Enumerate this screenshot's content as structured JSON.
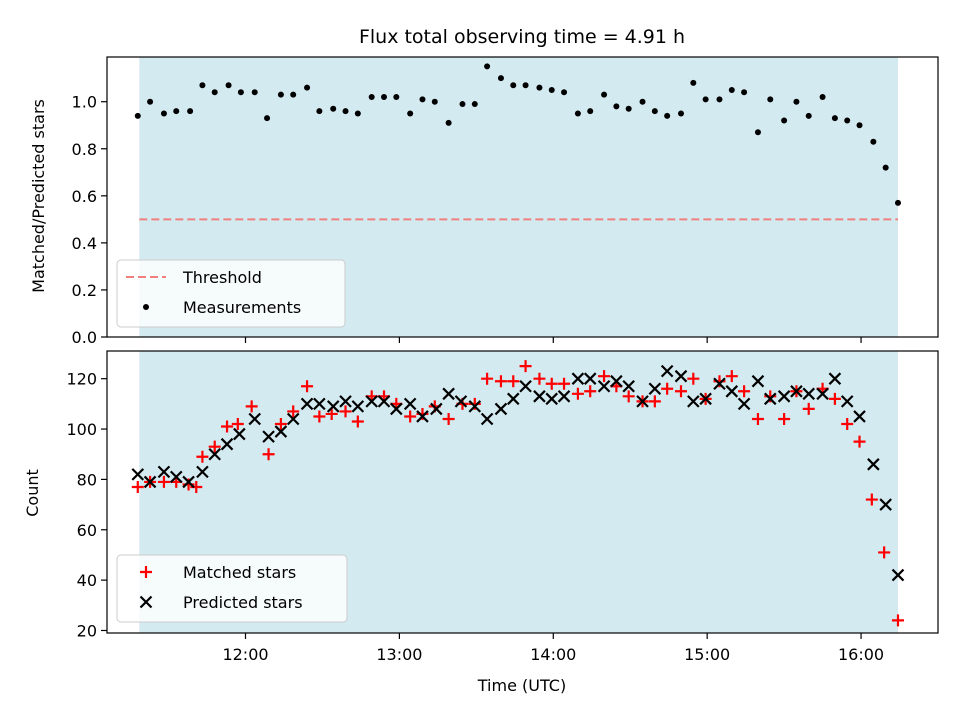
{
  "colors": {
    "shade": "#d3eaf0",
    "threshold": "#f08080",
    "matched": "#ff0000",
    "predicted": "#000000",
    "measurements": "#000000"
  },
  "chart_data": [
    {
      "type": "scatter",
      "title": "Flux total observing time = 4.91 h",
      "xlabel": "",
      "ylabel": "Matched/Predicted stars",
      "x_axis": "time (UTC, hours)",
      "xlim": [
        11.1,
        16.5
      ],
      "ylim": [
        0.0,
        1.19
      ],
      "yticks": [
        0.0,
        0.2,
        0.4,
        0.6,
        0.8,
        1.0
      ],
      "ytick_labels": [
        "0.0",
        "0.2",
        "0.4",
        "0.6",
        "0.8",
        "1.0"
      ],
      "xticks": [
        12,
        13,
        14,
        15,
        16
      ],
      "shaded_span": [
        11.31,
        16.24
      ],
      "legend_position": "lower-left",
      "threshold": {
        "name": "Threshold",
        "value": 0.5,
        "style": "dashed"
      },
      "series": [
        {
          "name": "Measurements",
          "marker": "dot",
          "points": [
            [
              11.3,
              0.94
            ],
            [
              11.38,
              1.0
            ],
            [
              11.47,
              0.95
            ],
            [
              11.55,
              0.96
            ],
            [
              11.64,
              0.96
            ],
            [
              11.72,
              1.07
            ],
            [
              11.8,
              1.04
            ],
            [
              11.89,
              1.07
            ],
            [
              11.97,
              1.04
            ],
            [
              12.06,
              1.04
            ],
            [
              12.14,
              0.93
            ],
            [
              12.23,
              1.03
            ],
            [
              12.31,
              1.03
            ],
            [
              12.4,
              1.06
            ],
            [
              12.48,
              0.96
            ],
            [
              12.57,
              0.97
            ],
            [
              12.65,
              0.96
            ],
            [
              12.73,
              0.95
            ],
            [
              12.82,
              1.02
            ],
            [
              12.9,
              1.02
            ],
            [
              12.98,
              1.02
            ],
            [
              13.07,
              0.95
            ],
            [
              13.15,
              1.01
            ],
            [
              13.23,
              1.0
            ],
            [
              13.32,
              0.91
            ],
            [
              13.41,
              0.99
            ],
            [
              13.49,
              0.99
            ],
            [
              13.57,
              1.15
            ],
            [
              13.66,
              1.1
            ],
            [
              13.74,
              1.07
            ],
            [
              13.82,
              1.07
            ],
            [
              13.91,
              1.06
            ],
            [
              13.99,
              1.05
            ],
            [
              14.07,
              1.04
            ],
            [
              14.16,
              0.95
            ],
            [
              14.24,
              0.96
            ],
            [
              14.33,
              1.03
            ],
            [
              14.41,
              0.98
            ],
            [
              14.49,
              0.97
            ],
            [
              14.58,
              1.0
            ],
            [
              14.66,
              0.96
            ],
            [
              14.74,
              0.94
            ],
            [
              14.83,
              0.95
            ],
            [
              14.91,
              1.08
            ],
            [
              14.99,
              1.01
            ],
            [
              15.08,
              1.01
            ],
            [
              15.16,
              1.05
            ],
            [
              15.24,
              1.04
            ],
            [
              15.33,
              0.87
            ],
            [
              15.41,
              1.01
            ],
            [
              15.5,
              0.92
            ],
            [
              15.58,
              1.0
            ],
            [
              15.66,
              0.94
            ],
            [
              15.75,
              1.02
            ],
            [
              15.83,
              0.93
            ],
            [
              15.91,
              0.92
            ],
            [
              15.99,
              0.9
            ],
            [
              16.08,
              0.83
            ],
            [
              16.16,
              0.72
            ],
            [
              16.24,
              0.57
            ]
          ]
        }
      ]
    },
    {
      "type": "scatter",
      "title": "",
      "xlabel": "Time (UTC)",
      "ylabel": "Count",
      "x_axis": "time (UTC, hours)",
      "xlim": [
        11.1,
        16.5
      ],
      "ylim": [
        19,
        131
      ],
      "yticks": [
        20,
        40,
        60,
        80,
        100,
        120
      ],
      "ytick_labels": [
        "20",
        "40",
        "60",
        "80",
        "100",
        "120"
      ],
      "xticks": [
        12,
        13,
        14,
        15,
        16
      ],
      "xtick_labels": [
        "12:00",
        "13:00",
        "14:00",
        "15:00",
        "16:00"
      ],
      "shaded_span": [
        11.31,
        16.24
      ],
      "legend_position": "lower-left",
      "series": [
        {
          "name": "Matched stars",
          "marker": "plus",
          "points": [
            [
              11.3,
              77
            ],
            [
              11.38,
              79
            ],
            [
              11.47,
              79
            ],
            [
              11.55,
              79
            ],
            [
              11.63,
              78
            ],
            [
              11.68,
              77
            ],
            [
              11.72,
              89
            ],
            [
              11.8,
              93
            ],
            [
              11.88,
              101
            ],
            [
              11.95,
              102
            ],
            [
              12.04,
              109
            ],
            [
              12.15,
              90
            ],
            [
              12.23,
              102
            ],
            [
              12.31,
              107
            ],
            [
              12.4,
              117
            ],
            [
              12.48,
              105
            ],
            [
              12.56,
              106
            ],
            [
              12.65,
              107
            ],
            [
              12.73,
              103
            ],
            [
              12.82,
              113
            ],
            [
              12.9,
              113
            ],
            [
              12.98,
              110
            ],
            [
              13.07,
              105
            ],
            [
              13.15,
              106
            ],
            [
              13.23,
              109
            ],
            [
              13.32,
              104
            ],
            [
              13.41,
              110
            ],
            [
              13.49,
              110
            ],
            [
              13.57,
              120
            ],
            [
              13.66,
              119
            ],
            [
              13.74,
              119
            ],
            [
              13.82,
              125
            ],
            [
              13.91,
              120
            ],
            [
              13.99,
              118
            ],
            [
              14.07,
              118
            ],
            [
              14.16,
              114
            ],
            [
              14.24,
              115
            ],
            [
              14.33,
              121
            ],
            [
              14.41,
              117
            ],
            [
              14.49,
              113
            ],
            [
              14.58,
              111
            ],
            [
              14.66,
              111
            ],
            [
              14.74,
              116
            ],
            [
              14.83,
              115
            ],
            [
              14.91,
              120
            ],
            [
              14.99,
              112
            ],
            [
              15.08,
              119
            ],
            [
              15.16,
              121
            ],
            [
              15.24,
              115
            ],
            [
              15.33,
              104
            ],
            [
              15.41,
              113
            ],
            [
              15.5,
              104
            ],
            [
              15.58,
              115
            ],
            [
              15.66,
              108
            ],
            [
              15.75,
              116
            ],
            [
              15.83,
              112
            ],
            [
              15.91,
              102
            ],
            [
              15.99,
              95
            ],
            [
              16.07,
              72
            ],
            [
              16.15,
              51
            ],
            [
              16.24,
              24
            ]
          ]
        },
        {
          "name": "Predicted stars",
          "marker": "x",
          "points": [
            [
              11.3,
              82
            ],
            [
              11.38,
              79
            ],
            [
              11.47,
              83
            ],
            [
              11.55,
              81
            ],
            [
              11.63,
              79
            ],
            [
              11.72,
              83
            ],
            [
              11.8,
              90
            ],
            [
              11.88,
              94
            ],
            [
              11.96,
              98
            ],
            [
              12.06,
              104
            ],
            [
              12.15,
              97
            ],
            [
              12.23,
              99
            ],
            [
              12.31,
              104
            ],
            [
              12.4,
              110
            ],
            [
              12.48,
              110
            ],
            [
              12.57,
              109
            ],
            [
              12.65,
              111
            ],
            [
              12.73,
              109
            ],
            [
              12.82,
              111
            ],
            [
              12.9,
              111
            ],
            [
              12.98,
              108
            ],
            [
              13.07,
              110
            ],
            [
              13.15,
              105
            ],
            [
              13.24,
              108
            ],
            [
              13.32,
              114
            ],
            [
              13.4,
              111
            ],
            [
              13.49,
              109
            ],
            [
              13.57,
              104
            ],
            [
              13.66,
              108
            ],
            [
              13.74,
              112
            ],
            [
              13.82,
              117
            ],
            [
              13.91,
              113
            ],
            [
              13.99,
              112
            ],
            [
              14.07,
              113
            ],
            [
              14.16,
              120
            ],
            [
              14.24,
              120
            ],
            [
              14.33,
              117
            ],
            [
              14.41,
              119
            ],
            [
              14.49,
              117
            ],
            [
              14.58,
              111
            ],
            [
              14.66,
              116
            ],
            [
              14.74,
              123
            ],
            [
              14.83,
              121
            ],
            [
              14.91,
              111
            ],
            [
              14.99,
              112
            ],
            [
              15.08,
              118
            ],
            [
              15.16,
              115
            ],
            [
              15.24,
              110
            ],
            [
              15.33,
              119
            ],
            [
              15.41,
              112
            ],
            [
              15.5,
              113
            ],
            [
              15.58,
              115
            ],
            [
              15.66,
              114
            ],
            [
              15.75,
              114
            ],
            [
              15.83,
              120
            ],
            [
              15.91,
              111
            ],
            [
              15.99,
              105
            ],
            [
              16.08,
              86
            ],
            [
              16.16,
              70
            ],
            [
              16.24,
              42
            ]
          ]
        }
      ]
    }
  ]
}
